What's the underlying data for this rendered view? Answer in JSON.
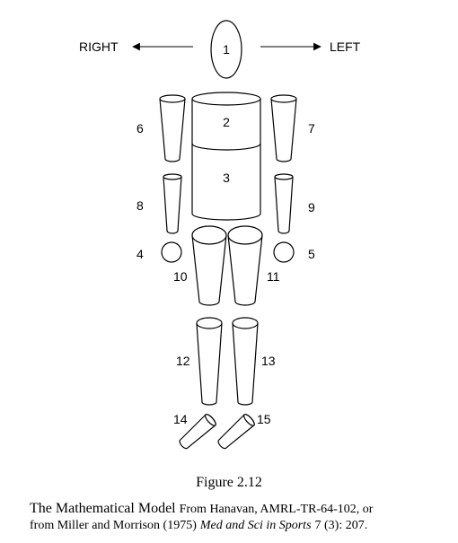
{
  "direction": {
    "right": "RIGHT",
    "left": "LEFT"
  },
  "segments": {
    "s1": "1",
    "s2": "2",
    "s3": "3",
    "s4": "4",
    "s5": "5",
    "s6": "6",
    "s7": "7",
    "s8": "8",
    "s9": "9",
    "s10": "10",
    "s11": "11",
    "s12": "12",
    "s13": "13",
    "s14": "14",
    "s15": "15"
  },
  "figure": {
    "number": "Figure 2.12",
    "title": "The Mathematical Model",
    "source_1": "From Hanavan, AMRL-TR-64-102, or",
    "source_2a": "from Miller and Morrison (1975)",
    "journal": "Med and Sci in Sports",
    "source_2b": "7 (3): 207."
  }
}
